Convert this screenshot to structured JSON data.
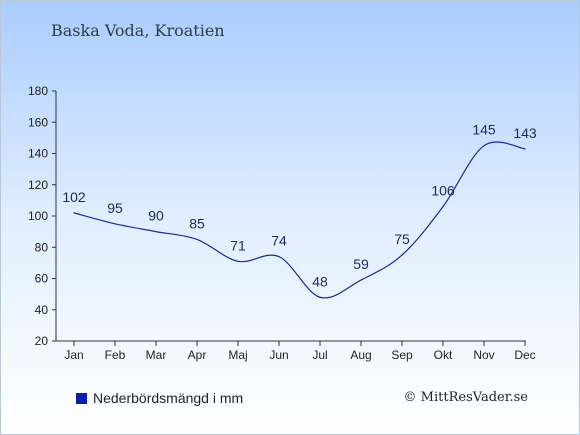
{
  "title": "Baska Voda, Kroatien",
  "legend": {
    "label": "Nederbördsmängd i mm",
    "color": "#0c1fa8"
  },
  "credit": "© MittResVader.se",
  "chart_data": {
    "type": "line",
    "categories": [
      "Jan",
      "Feb",
      "Mar",
      "Apr",
      "Maj",
      "Jun",
      "Jul",
      "Aug",
      "Sep",
      "Okt",
      "Nov",
      "Dec"
    ],
    "series": [
      {
        "name": "Nederbördsmängd i mm",
        "values": [
          102,
          95,
          90,
          85,
          71,
          74,
          48,
          59,
          75,
          106,
          145,
          143
        ]
      }
    ],
    "yticks": [
      20,
      40,
      60,
      80,
      100,
      120,
      140,
      160,
      180
    ],
    "ylim": [
      20,
      180
    ],
    "line_color": "#1a2a9a",
    "label_color": "#1a2a5a",
    "grid": false,
    "legend_position": "bottom-left"
  }
}
